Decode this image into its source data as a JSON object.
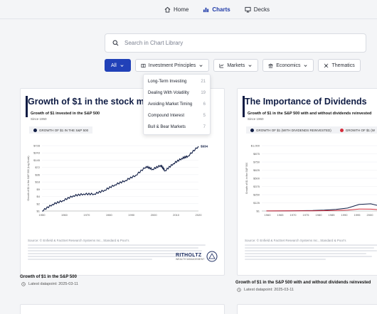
{
  "nav": {
    "items": [
      {
        "label": "Home",
        "icon": "home-icon",
        "active": false
      },
      {
        "label": "Charts",
        "icon": "bar-chart-icon",
        "active": true
      },
      {
        "label": "Decks",
        "icon": "presentation-icon",
        "active": false
      }
    ]
  },
  "search": {
    "placeholder": "Search in Chart Library"
  },
  "filters": {
    "all": "All",
    "investment": "Investment Principles",
    "markets": "Markets",
    "economics": "Economics",
    "thematics": "Thematics"
  },
  "dropdown": {
    "items": [
      {
        "label": "Long-Term Investing",
        "count": "21"
      },
      {
        "label": "Dealing With Volatility",
        "count": "19"
      },
      {
        "label": "Avoiding Market Timing",
        "count": "6"
      },
      {
        "label": "Compound Interest",
        "count": "5"
      },
      {
        "label": "Bull & Bear Markets",
        "count": "7"
      }
    ]
  },
  "cards": [
    {
      "title": "Growth of $1 in the stock m",
      "subtitle": "Growth of $1 invested in the S&P 500",
      "since": "Since 1950",
      "legend": "GROWTH OF $1 IN THE S&P 500",
      "source": "Source: © Enfield & FactSet Research Systems Inc., Standard & Poor's",
      "logo": "RITHOLTZ",
      "logo_sub": "WEALTH MANAGEMENT",
      "caption": "Growth of $1 in the S&P 500",
      "datapoint": "Latest datapoint: 2025-03-11",
      "end_label": "$934"
    },
    {
      "title": "The Importance of Dividends",
      "subtitle": "Growth of $1 in the S&P 500 with and without dividends reinvested",
      "since": "Since 1960",
      "legend": "GROWTH OF $1 (WITH DIVIDENDS REINVESTED)",
      "legend2": "GROWTH OF $1 (W",
      "source": "Source: © Enfield & FactSet Research Systems Inc., Standard & Poor's",
      "caption": "Growth of $1 in the S&P 500 with and without dividends reinvested",
      "datapoint": "Latest datapoint: 2025-03-11"
    }
  ],
  "chart_data": [
    {
      "type": "line",
      "ylabel": "Growth of $1 in the S&P 500 (Log Scale)",
      "log_scale": true,
      "yticks": [
        "$1",
        "$2",
        "$4",
        "$9",
        "$18",
        "$36",
        "$72",
        "$145",
        "$243",
        "$728"
      ],
      "xticks": [
        "1950",
        "1960",
        "1970",
        "1980",
        "1990",
        "2000",
        "2010",
        "2020"
      ],
      "x": [
        1950,
        1955,
        1960,
        1965,
        1970,
        1975,
        1980,
        1985,
        1990,
        1995,
        2000,
        2003,
        2007,
        2009,
        2013,
        2017,
        2020,
        2025
      ],
      "y": [
        1,
        2,
        3,
        5,
        6,
        6,
        9,
        16,
        25,
        44,
        110,
        82,
        125,
        70,
        150,
        260,
        330,
        934
      ],
      "colors": {
        "line": "#0f1c44"
      }
    },
    {
      "type": "line",
      "ylabel": "Growth of $1 in the S&P 500",
      "yticks": [
        "$1",
        "$125",
        "$250",
        "$375",
        "$500",
        "$625",
        "$750",
        "$875",
        "$1,000"
      ],
      "xticks": [
        "1960",
        "1965",
        "1970",
        "1975",
        "1980",
        "1985",
        "1990",
        "1995",
        "2000",
        "2005"
      ],
      "series": [
        {
          "color": "#0f1c44",
          "x": [
            1960,
            1970,
            1980,
            1985,
            1990,
            1995,
            2000,
            2005,
            2008,
            2012
          ],
          "y": [
            1,
            3,
            8,
            14,
            25,
            45,
            100,
            110,
            85,
            170
          ]
        },
        {
          "color": "#d62b3a",
          "x": [
            1960,
            1970,
            1980,
            1985,
            1990,
            1995,
            2000,
            2005,
            2008,
            2012
          ],
          "y": [
            1,
            2,
            3,
            5,
            8,
            14,
            30,
            28,
            22,
            40
          ]
        }
      ]
    }
  ]
}
